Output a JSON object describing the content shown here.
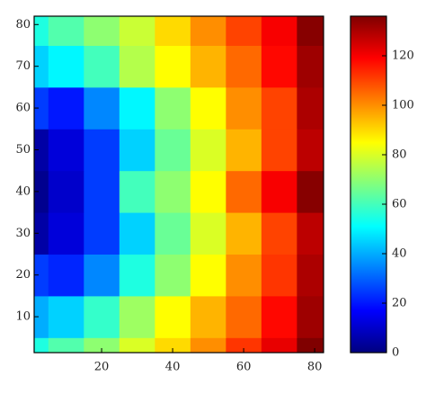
{
  "chart_data": {
    "type": "contour",
    "colormap": "jet",
    "x": [
      0,
      10,
      20,
      30,
      40,
      50,
      60,
      70,
      80
    ],
    "y": [
      0,
      10,
      20,
      30,
      40,
      50,
      60,
      70,
      80
    ],
    "z": [
      [
        55,
        62,
        70,
        80,
        90,
        100,
        112,
        122,
        136
      ],
      [
        40,
        45,
        58,
        72,
        85,
        95,
        105,
        118,
        132
      ],
      [
        25,
        22,
        35,
        55,
        70,
        85,
        100,
        112,
        130
      ],
      [
        5,
        12,
        25,
        45,
        65,
        80,
        95,
        110,
        128
      ],
      [
        2,
        10,
        25,
        60,
        70,
        85,
        105,
        120,
        135
      ],
      [
        5,
        12,
        25,
        45,
        65,
        80,
        95,
        110,
        128
      ],
      [
        25,
        20,
        35,
        50,
        70,
        85,
        100,
        110,
        130
      ],
      [
        45,
        50,
        60,
        75,
        85,
        95,
        105,
        118,
        132
      ],
      [
        55,
        62,
        70,
        78,
        90,
        100,
        110,
        120,
        135
      ]
    ],
    "xlim": [
      1,
      82.5
    ],
    "ylim": [
      1.4,
      82
    ],
    "xticks": [
      20,
      40,
      60,
      80
    ],
    "yticks": [
      10,
      20,
      30,
      40,
      50,
      60,
      70,
      80
    ],
    "clim": [
      0,
      136
    ],
    "cticks": [
      0,
      20,
      40,
      60,
      80,
      100,
      120
    ]
  }
}
